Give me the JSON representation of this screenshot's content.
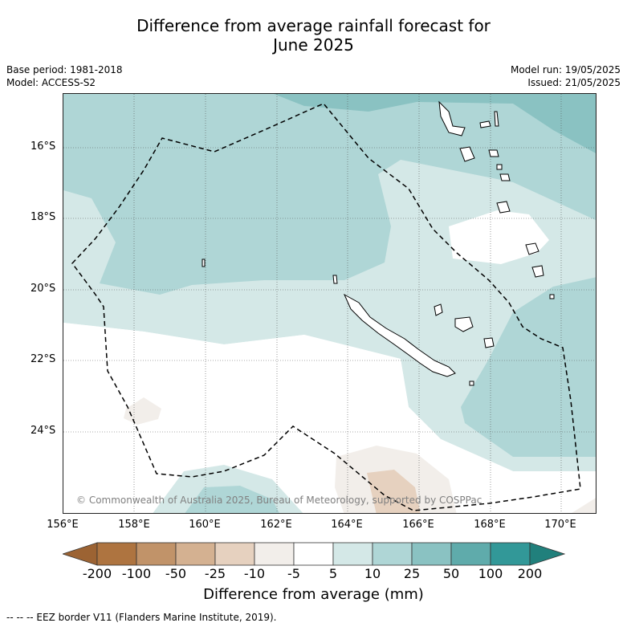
{
  "title_line1": "Difference from average rainfall forecast for",
  "title_line2": "June 2025",
  "base_period": "Base period: 1981-2018",
  "model": "Model: ACCESS-S2",
  "model_run": "Model run: 19/05/2025",
  "issued": "Issued: 21/05/2025",
  "attribution": "© Commonwealth of Australia 2025, Bureau of Meteorology, supported by COSPPac",
  "lat_labels": [
    "16°S",
    "18°S",
    "20°S",
    "22°S",
    "24°S"
  ],
  "lon_labels": [
    "156°E",
    "158°E",
    "160°E",
    "162°E",
    "164°E",
    "166°E",
    "168°E",
    "170°E"
  ],
  "colorbar": {
    "labels": [
      "-200",
      "-100",
      "-50",
      "-25",
      "-10",
      "-5",
      "5",
      "10",
      "25",
      "50",
      "100",
      "200"
    ],
    "colors": [
      "#9c6333",
      "#ae7440",
      "#c19369",
      "#d4b191",
      "#e6d1bf",
      "#f2eeea",
      "#ffffff",
      "#d4e8e7",
      "#afd6d6",
      "#8ac2c2",
      "#5fabab",
      "#329898",
      "#21807c"
    ],
    "title": "Difference from average (mm)"
  },
  "footnote": "--  --  -- EEZ border V11 (Flanders Marine Institute, 2019).",
  "legend_colors": {
    "light_teal": "#d4e8e7",
    "mid_teal": "#afd6d6",
    "dark_teal": "#8ac2c2",
    "light_brown": "#f2eeea",
    "tan": "#e6d1bf"
  }
}
